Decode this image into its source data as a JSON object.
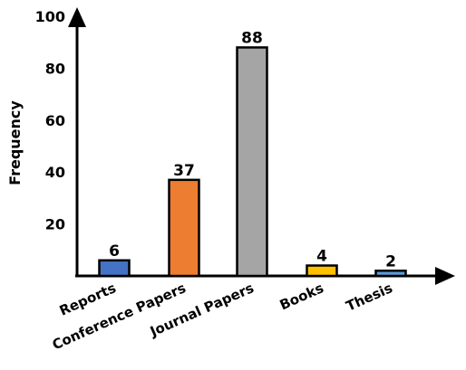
{
  "chart_data": {
    "type": "bar",
    "title": "",
    "xlabel": "",
    "ylabel": "Frequency",
    "ylim": [
      0,
      100
    ],
    "yticks": [
      20,
      40,
      60,
      80,
      100
    ],
    "grid": false,
    "categories": [
      "Reports",
      "Conference Papers",
      "Journal Papers",
      "Books",
      "Thesis"
    ],
    "values": [
      6,
      37,
      88,
      4,
      2
    ],
    "data_labels": [
      "6",
      "37",
      "88",
      "4",
      "2"
    ],
    "bar_colors": [
      "#4472c4",
      "#ed7d31",
      "#a5a5a5",
      "#ffc000",
      "#5b9bd5"
    ]
  }
}
